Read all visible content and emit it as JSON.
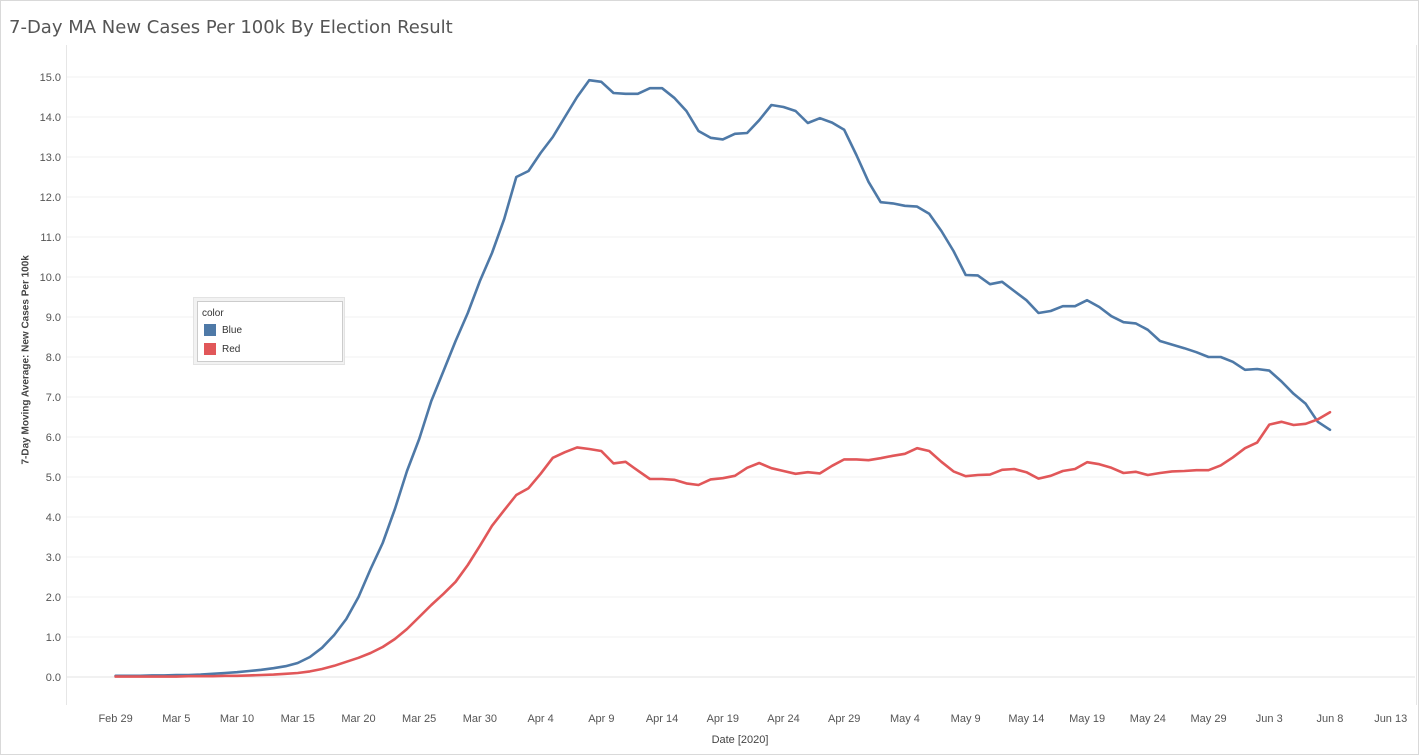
{
  "window": {
    "title": "7-Day MA New Cases Per 100k By Election Result"
  },
  "legend": {
    "title": "color",
    "items": [
      {
        "label": "Blue",
        "color": "#4e79a7"
      },
      {
        "label": "Red",
        "color": "#e15759"
      }
    ]
  },
  "chart_data": {
    "type": "line",
    "title": "7-Day MA New Cases Per 100k By Election Result",
    "xlabel": "Date [2020]",
    "ylabel": "7-Day Moving Average: New Cases Per 100k",
    "x_start": "2020-02-29",
    "x_end": "2020-06-10",
    "xlim": [
      "2020-02-25",
      "2020-06-15"
    ],
    "ylim": [
      -0.7,
      15.8
    ],
    "grid": true,
    "legend_position": "left",
    "x_ticks": [
      "Feb 29",
      "Mar 5",
      "Mar 10",
      "Mar 15",
      "Mar 20",
      "Mar 25",
      "Mar 30",
      "Apr 4",
      "Apr 9",
      "Apr 14",
      "Apr 19",
      "Apr 24",
      "Apr 29",
      "May 4",
      "May 9",
      "May 14",
      "May 19",
      "May 24",
      "May 29",
      "Jun 3",
      "Jun 8",
      "Jun 13"
    ],
    "y_ticks": [
      "0.0",
      "1.0",
      "2.0",
      "3.0",
      "4.0",
      "5.0",
      "6.0",
      "7.0",
      "8.0",
      "9.0",
      "10.0",
      "11.0",
      "12.0",
      "13.0",
      "14.0",
      "15.0"
    ],
    "series": [
      {
        "name": "Blue",
        "color": "#4e79a7",
        "values": [
          0.03,
          0.03,
          0.03,
          0.04,
          0.04,
          0.05,
          0.05,
          0.06,
          0.08,
          0.1,
          0.12,
          0.15,
          0.18,
          0.22,
          0.27,
          0.35,
          0.5,
          0.73,
          1.05,
          1.45,
          2.0,
          2.7,
          3.35,
          4.2,
          5.15,
          5.95,
          6.9,
          7.65,
          8.4,
          9.1,
          9.9,
          10.6,
          11.45,
          12.5,
          12.65,
          13.1,
          13.5,
          14.0,
          14.5,
          14.92,
          14.88,
          14.6,
          14.58,
          14.58,
          14.72,
          14.72,
          14.48,
          14.15,
          13.65,
          13.48,
          13.44,
          13.58,
          13.6,
          13.92,
          14.3,
          14.25,
          14.15,
          13.85,
          13.97,
          13.86,
          13.68,
          13.05,
          12.38,
          11.87,
          11.84,
          11.78,
          11.76,
          11.58,
          11.15,
          10.65,
          10.05,
          10.04,
          9.82,
          9.88,
          9.65,
          9.42,
          9.1,
          9.15,
          9.27,
          9.27,
          9.42,
          9.25,
          9.02,
          8.87,
          8.84,
          8.68,
          8.4,
          8.31,
          8.22,
          8.12,
          8.0,
          8.0,
          7.88,
          7.68,
          7.7,
          7.66,
          7.39,
          7.08,
          6.83,
          6.38,
          6.18
        ]
      },
      {
        "name": "Red",
        "color": "#e15759",
        "values": [
          0.01,
          0.01,
          0.01,
          0.01,
          0.01,
          0.01,
          0.02,
          0.02,
          0.02,
          0.03,
          0.03,
          0.04,
          0.05,
          0.06,
          0.08,
          0.1,
          0.14,
          0.2,
          0.28,
          0.38,
          0.48,
          0.6,
          0.75,
          0.95,
          1.2,
          1.5,
          1.8,
          2.08,
          2.38,
          2.8,
          3.28,
          3.78,
          4.17,
          4.55,
          4.72,
          5.08,
          5.48,
          5.62,
          5.74,
          5.7,
          5.65,
          5.34,
          5.38,
          5.16,
          4.95,
          4.95,
          4.93,
          4.84,
          4.8,
          4.94,
          4.97,
          5.03,
          5.23,
          5.35,
          5.22,
          5.15,
          5.08,
          5.12,
          5.09,
          5.28,
          5.44,
          5.44,
          5.42,
          5.47,
          5.53,
          5.58,
          5.72,
          5.65,
          5.38,
          5.14,
          5.02,
          5.05,
          5.06,
          5.18,
          5.2,
          5.12,
          4.96,
          5.03,
          5.15,
          5.2,
          5.37,
          5.32,
          5.23,
          5.1,
          5.13,
          5.05,
          5.1,
          5.14,
          5.15,
          5.17,
          5.17,
          5.29,
          5.49,
          5.72,
          5.86,
          6.31,
          6.38,
          6.3,
          6.33,
          6.44,
          6.62
        ]
      }
    ]
  }
}
